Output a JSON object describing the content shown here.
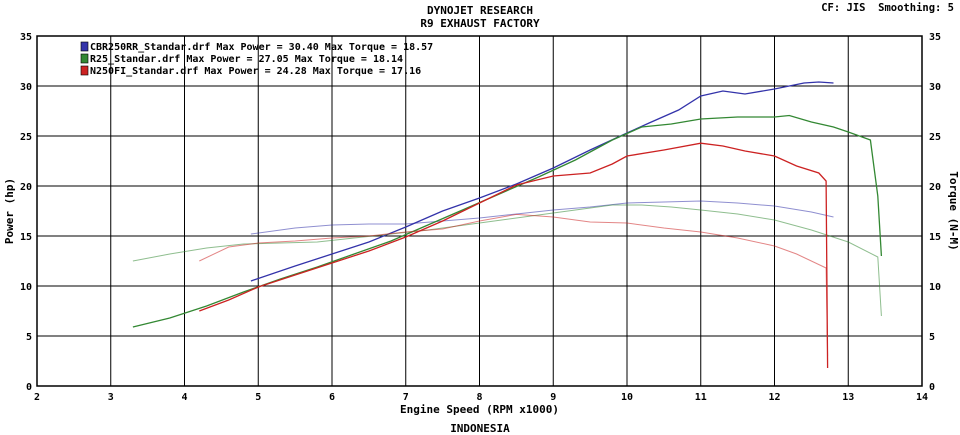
{
  "header": {
    "title": "DYNOJET RESEARCH",
    "subtitle": "R9 EXHAUST FACTORY",
    "cf_label": "CF: JIS",
    "smoothing_label": "Smoothing: 5",
    "footer": "INDONESIA"
  },
  "chart_data": {
    "type": "line",
    "title": "DYNOJET RESEARCH",
    "subtitle": "R9 EXHAUST FACTORY",
    "xlabel": "Engine Speed (RPM x1000)",
    "ylabel": "Power (hp)",
    "y2label": "Torque (N-M)",
    "xlim": [
      2,
      14
    ],
    "ylim": [
      0,
      35
    ],
    "y2lim": [
      0,
      35
    ],
    "xticks": [
      "2",
      "3",
      "4",
      "5",
      "6",
      "7",
      "8",
      "9",
      "10",
      "11",
      "12",
      "13",
      "14"
    ],
    "yticks": [
      "0",
      "5",
      "10",
      "15",
      "20",
      "25",
      "30",
      "35"
    ],
    "grid": true,
    "legend_position": "top-left",
    "series": [
      {
        "name": "CBR250RR_Standar.drf",
        "legend": "CBR250RR_Standar.drf Max Power = 30.40    Max Torque = 18.57",
        "color": "#3333aa",
        "power": [
          [
            4.9,
            10.5
          ],
          [
            5.5,
            12.0
          ],
          [
            6.0,
            13.2
          ],
          [
            6.5,
            14.4
          ],
          [
            7.0,
            15.9
          ],
          [
            7.5,
            17.5
          ],
          [
            8.0,
            18.8
          ],
          [
            8.5,
            20.2
          ],
          [
            9.0,
            21.8
          ],
          [
            9.5,
            23.6
          ],
          [
            10.0,
            25.3
          ],
          [
            10.3,
            26.3
          ],
          [
            10.7,
            27.6
          ],
          [
            11.0,
            29.0
          ],
          [
            11.3,
            29.5
          ],
          [
            11.6,
            29.2
          ],
          [
            12.0,
            29.7
          ],
          [
            12.4,
            30.3
          ],
          [
            12.6,
            30.4
          ],
          [
            12.8,
            30.3
          ]
        ],
        "torque": [
          [
            4.9,
            15.2
          ],
          [
            5.5,
            15.8
          ],
          [
            6.0,
            16.1
          ],
          [
            6.5,
            16.2
          ],
          [
            7.0,
            16.2
          ],
          [
            7.5,
            16.5
          ],
          [
            8.0,
            16.8
          ],
          [
            8.5,
            17.2
          ],
          [
            9.0,
            17.6
          ],
          [
            9.5,
            17.9
          ],
          [
            10.0,
            18.3
          ],
          [
            10.5,
            18.4
          ],
          [
            11.0,
            18.5
          ],
          [
            11.5,
            18.3
          ],
          [
            12.0,
            18.0
          ],
          [
            12.5,
            17.4
          ],
          [
            12.8,
            16.9
          ]
        ]
      },
      {
        "name": "R25_Standar.drf",
        "legend": "R25_Standar.drf Max Power = 27.05    Max Torque = 18.14",
        "color": "#338833",
        "power": [
          [
            3.3,
            5.9
          ],
          [
            3.8,
            6.8
          ],
          [
            4.3,
            8.0
          ],
          [
            4.8,
            9.4
          ],
          [
            5.3,
            10.7
          ],
          [
            5.8,
            11.9
          ],
          [
            6.3,
            13.2
          ],
          [
            6.8,
            14.5
          ],
          [
            7.3,
            16.1
          ],
          [
            7.8,
            17.7
          ],
          [
            8.3,
            19.3
          ],
          [
            8.8,
            20.9
          ],
          [
            9.3,
            22.6
          ],
          [
            9.8,
            24.6
          ],
          [
            10.2,
            25.9
          ],
          [
            10.6,
            26.2
          ],
          [
            11.0,
            26.7
          ],
          [
            11.5,
            26.9
          ],
          [
            12.0,
            26.9
          ],
          [
            12.2,
            27.05
          ],
          [
            12.5,
            26.4
          ],
          [
            12.8,
            25.9
          ],
          [
            13.0,
            25.4
          ],
          [
            13.3,
            24.6
          ],
          [
            13.4,
            19.0
          ],
          [
            13.45,
            13.0
          ]
        ],
        "torque": [
          [
            3.3,
            12.5
          ],
          [
            3.8,
            13.2
          ],
          [
            4.3,
            13.8
          ],
          [
            4.8,
            14.2
          ],
          [
            5.3,
            14.3
          ],
          [
            5.8,
            14.4
          ],
          [
            6.3,
            14.8
          ],
          [
            6.8,
            15.2
          ],
          [
            7.3,
            15.6
          ],
          [
            7.8,
            16.1
          ],
          [
            8.3,
            16.6
          ],
          [
            8.8,
            17.1
          ],
          [
            9.3,
            17.6
          ],
          [
            9.8,
            18.1
          ],
          [
            10.2,
            18.1
          ],
          [
            10.6,
            17.9
          ],
          [
            11.0,
            17.6
          ],
          [
            11.5,
            17.2
          ],
          [
            12.0,
            16.6
          ],
          [
            12.5,
            15.6
          ],
          [
            13.0,
            14.4
          ],
          [
            13.4,
            12.9
          ],
          [
            13.45,
            7.0
          ]
        ]
      },
      {
        "name": "N250FI_Standar.drf",
        "legend": "N250FI_Standar.drf Max Power = 24.28    Max Torque = 17.16",
        "color": "#cc2222",
        "power": [
          [
            4.2,
            7.5
          ],
          [
            4.6,
            8.6
          ],
          [
            5.0,
            9.9
          ],
          [
            5.5,
            11.1
          ],
          [
            6.0,
            12.3
          ],
          [
            6.5,
            13.5
          ],
          [
            7.0,
            14.9
          ],
          [
            7.5,
            16.5
          ],
          [
            8.0,
            18.3
          ],
          [
            8.5,
            20.1
          ],
          [
            9.0,
            21.0
          ],
          [
            9.5,
            21.3
          ],
          [
            9.8,
            22.2
          ],
          [
            10.0,
            23.0
          ],
          [
            10.5,
            23.6
          ],
          [
            11.0,
            24.28
          ],
          [
            11.3,
            24.0
          ],
          [
            11.6,
            23.5
          ],
          [
            12.0,
            23.0
          ],
          [
            12.3,
            22.0
          ],
          [
            12.6,
            21.3
          ],
          [
            12.7,
            20.5
          ],
          [
            12.72,
            1.8
          ]
        ],
        "torque": [
          [
            4.2,
            12.5
          ],
          [
            4.6,
            13.9
          ],
          [
            5.0,
            14.3
          ],
          [
            5.5,
            14.5
          ],
          [
            6.0,
            14.8
          ],
          [
            6.5,
            15.0
          ],
          [
            7.0,
            15.4
          ],
          [
            7.5,
            15.7
          ],
          [
            8.0,
            16.5
          ],
          [
            8.5,
            17.16
          ],
          [
            9.0,
            16.9
          ],
          [
            9.5,
            16.4
          ],
          [
            10.0,
            16.3
          ],
          [
            10.5,
            15.8
          ],
          [
            11.0,
            15.4
          ],
          [
            11.5,
            14.8
          ],
          [
            12.0,
            14.0
          ],
          [
            12.3,
            13.2
          ],
          [
            12.7,
            11.8
          ],
          [
            12.72,
            3.0
          ]
        ]
      }
    ]
  }
}
